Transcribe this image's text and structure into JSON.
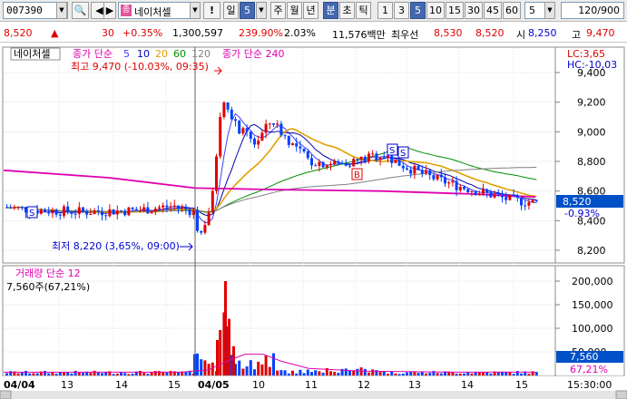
{
  "toolbar": {
    "code": "007390",
    "stock_name": "네이처셀",
    "name_badge": "종",
    "unit_buttons": [
      "일",
      "5",
      "주",
      "월",
      "년",
      "분",
      "초",
      "틱"
    ],
    "active_unit": "분",
    "period_buttons": [
      "1",
      "3",
      "5",
      "10",
      "15",
      "30",
      "45",
      "60"
    ],
    "active_period": "5",
    "minute_value": "5",
    "count_display": "120/900"
  },
  "quote": {
    "price": "8,520",
    "arrow": "▲",
    "change": "30",
    "change_pct": "+0.35%",
    "volume": "1,300,597",
    "volume_ratio": "239.90%",
    "turnover": "2.03%",
    "amount": "11,576백만",
    "priority_label": "최우선",
    "ask": "8,530",
    "bid": "8,520",
    "open_label": "시",
    "open": "8,250",
    "high_label": "고",
    "high": "9,470"
  },
  "chart": {
    "price_panel_title": "네이처셀",
    "ma_prefix": "종가 단순",
    "ma_periods": [
      "5",
      "10",
      "20",
      "60",
      "120"
    ],
    "ma_colors": [
      "#4040ff",
      "#0000aa",
      "#e0a000",
      "#009000",
      "#808080"
    ],
    "ma240_label": "종가 단순 240",
    "ma240_color": "#e000b0",
    "high_annotation": "최고 9,470 (-10.03%, 09:35)",
    "low_annotation": "최저 8,220 (3,65%, 09:00)",
    "lc_label": "LC:3,65",
    "hc_label": "HC:-10,03",
    "price_ticks": [
      "9,400",
      "9,200",
      "9,000",
      "8,800",
      "8,600",
      "8,400",
      "8,200"
    ],
    "current_price_label": "8,520",
    "current_pct_label": "-0.93%",
    "volume_panel_title": "거래량 단순 12",
    "volume_annotation": "7,560주(67,21%)",
    "volume_ticks": [
      "200,000",
      "150,000",
      "100,000",
      "50,000"
    ],
    "current_volume_label": "7,560",
    "current_volume_pct": "67,21%",
    "x_labels": [
      "04/04",
      "13",
      "14",
      "15",
      "04/05",
      "10",
      "11",
      "12",
      "13",
      "14",
      "15"
    ],
    "time_label": "15:30:00",
    "signal_labels": [
      "S",
      "B",
      "S",
      "S"
    ]
  },
  "colors": {
    "up": "#e00000",
    "down": "#0040ff",
    "accent": "#4468b0"
  }
}
